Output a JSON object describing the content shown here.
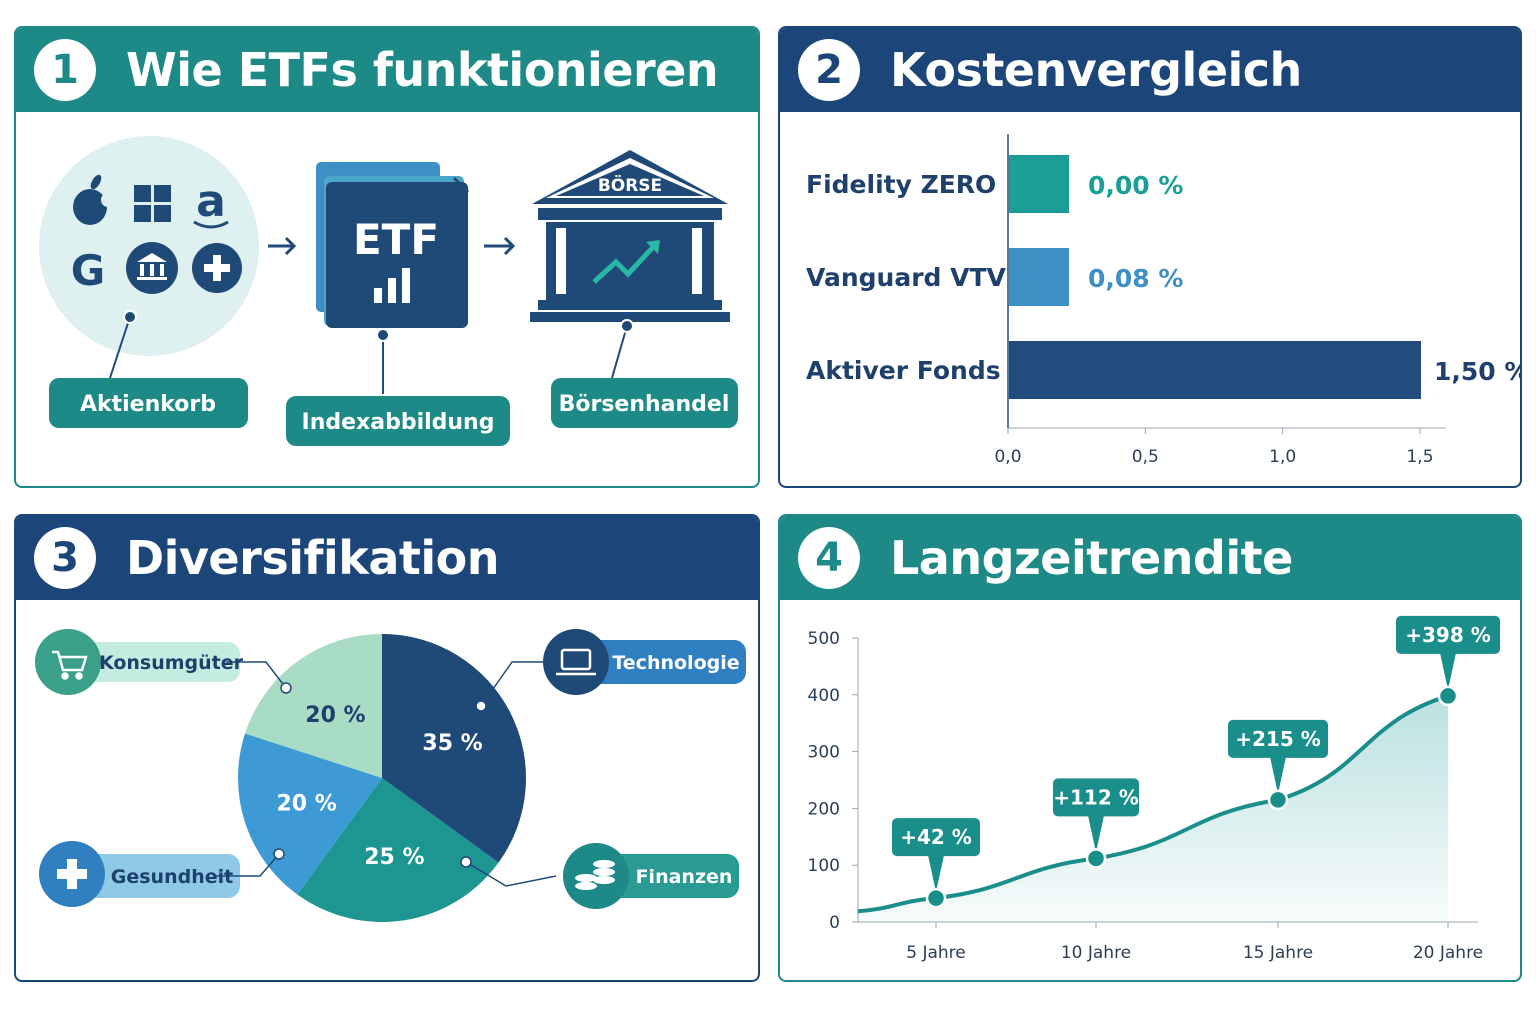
{
  "colors": {
    "teal": "#1d8a87",
    "navy": "#1c457a",
    "dark_navy": "#1f4a78",
    "mid_blue": "#3d8fc4",
    "light_green": "#a9dcc4",
    "bright_teal": "#1aa39a",
    "pale_circle": "#dff0f1"
  },
  "panel1": {
    "number": "1",
    "title": "Wie ETFs funktionieren",
    "icons": [
      "apple-icon",
      "windows-icon",
      "amazon-icon",
      "google-icon",
      "bank-icon",
      "health-plus-icon"
    ],
    "etf_label": "ETF",
    "exchange_sign": "BÖRSE",
    "labels": [
      "Aktienkorb",
      "Indexabbildung",
      "Börsenhandel"
    ]
  },
  "panel2": {
    "number": "2",
    "title": "Kostenvergleich"
  },
  "panel3": {
    "number": "3",
    "title": "Diversifikation"
  },
  "panel4": {
    "number": "4",
    "title": "Langzeitrendite"
  },
  "chart_data": [
    {
      "type": "bar",
      "orientation": "horizontal",
      "categories": [
        "Fidelity ZERO",
        "Vanguard VTV",
        "Aktiver Fonds"
      ],
      "values": [
        0.0,
        0.08,
        1.5
      ],
      "value_labels": [
        "0,00 %",
        "0,08 %",
        "1,50 %"
      ],
      "colors": [
        "#1a9e96",
        "#3d8fc4",
        "#234c7e"
      ],
      "xlim": [
        0,
        1.5
      ],
      "xticks": [
        "0,0",
        "0,5",
        "1,0",
        "1,5"
      ],
      "xtick_values": [
        0,
        0.5,
        1.0,
        1.5
      ]
    },
    {
      "type": "pie",
      "slices": [
        {
          "label": "Technologie",
          "value": 35,
          "value_label": "35 %",
          "color": "#1f4a78",
          "icon": "laptop-icon"
        },
        {
          "label": "Finanzen",
          "value": 25,
          "value_label": "25 %",
          "color": "#1d9590",
          "icon": "coins-icon"
        },
        {
          "label": "Gesundheit",
          "value": 20,
          "value_label": "20 %",
          "color": "#3d9ad4",
          "icon": "health-plus-icon"
        },
        {
          "label": "Konsumgüter",
          "value": 20,
          "value_label": "20 %",
          "color": "#a9dcc4",
          "icon": "cart-icon"
        }
      ]
    },
    {
      "type": "area",
      "categories": [
        "5 Jahre",
        "10 Jahre",
        "15 Jahre",
        "20 Jahre"
      ],
      "values": [
        42,
        112,
        215,
        398
      ],
      "value_labels": [
        "+42 %",
        "+112 %",
        "+215 %",
        "+398 %"
      ],
      "ylim": [
        0,
        500
      ],
      "yticks": [
        0,
        100,
        200,
        300,
        400,
        500
      ],
      "color": "#1a8e8a"
    }
  ]
}
